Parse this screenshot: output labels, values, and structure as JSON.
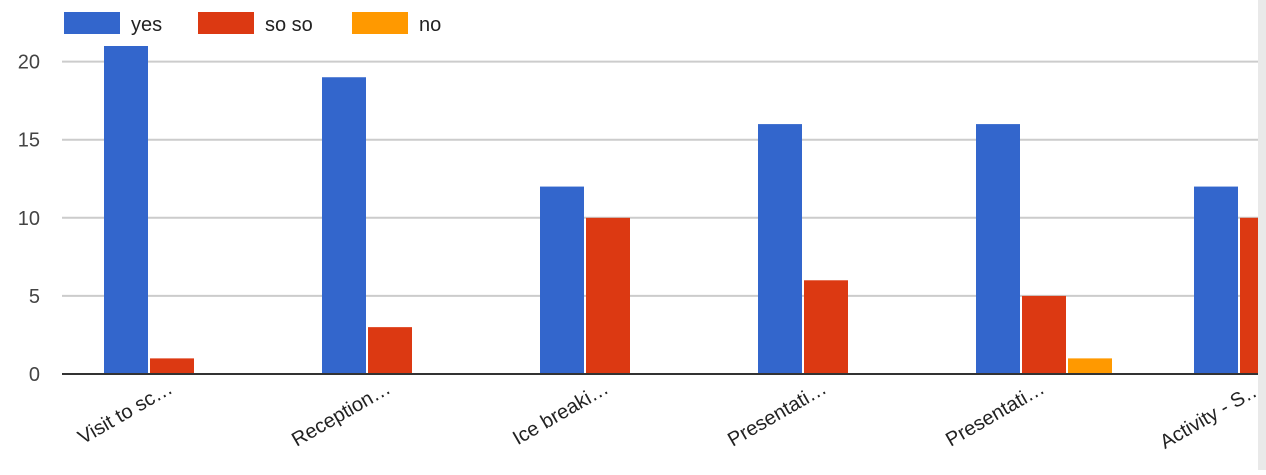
{
  "chart_data": {
    "type": "bar",
    "categories": [
      "Visit to sc…",
      "Reception…",
      "Ice breaki…",
      "Presentati…",
      "Presentati…",
      "Activity - S…"
    ],
    "series": [
      {
        "name": "yes",
        "values": [
          21,
          19,
          12,
          16,
          16,
          12
        ]
      },
      {
        "name": "so so",
        "values": [
          1,
          3,
          10,
          6,
          5,
          10
        ]
      },
      {
        "name": "no",
        "values": [
          0,
          0,
          0,
          0,
          1,
          0
        ]
      }
    ],
    "title": "",
    "xlabel": "",
    "ylabel": "",
    "ylim": [
      0,
      21
    ],
    "yticks": [
      0,
      5,
      10,
      15,
      20
    ],
    "grid": true,
    "legend_position": "top-left"
  },
  "colors": {
    "yes": "#3366cc",
    "so so": "#dc3912",
    "no": "#ff9900",
    "grid": "#cccccc",
    "baseline": "#333333"
  }
}
